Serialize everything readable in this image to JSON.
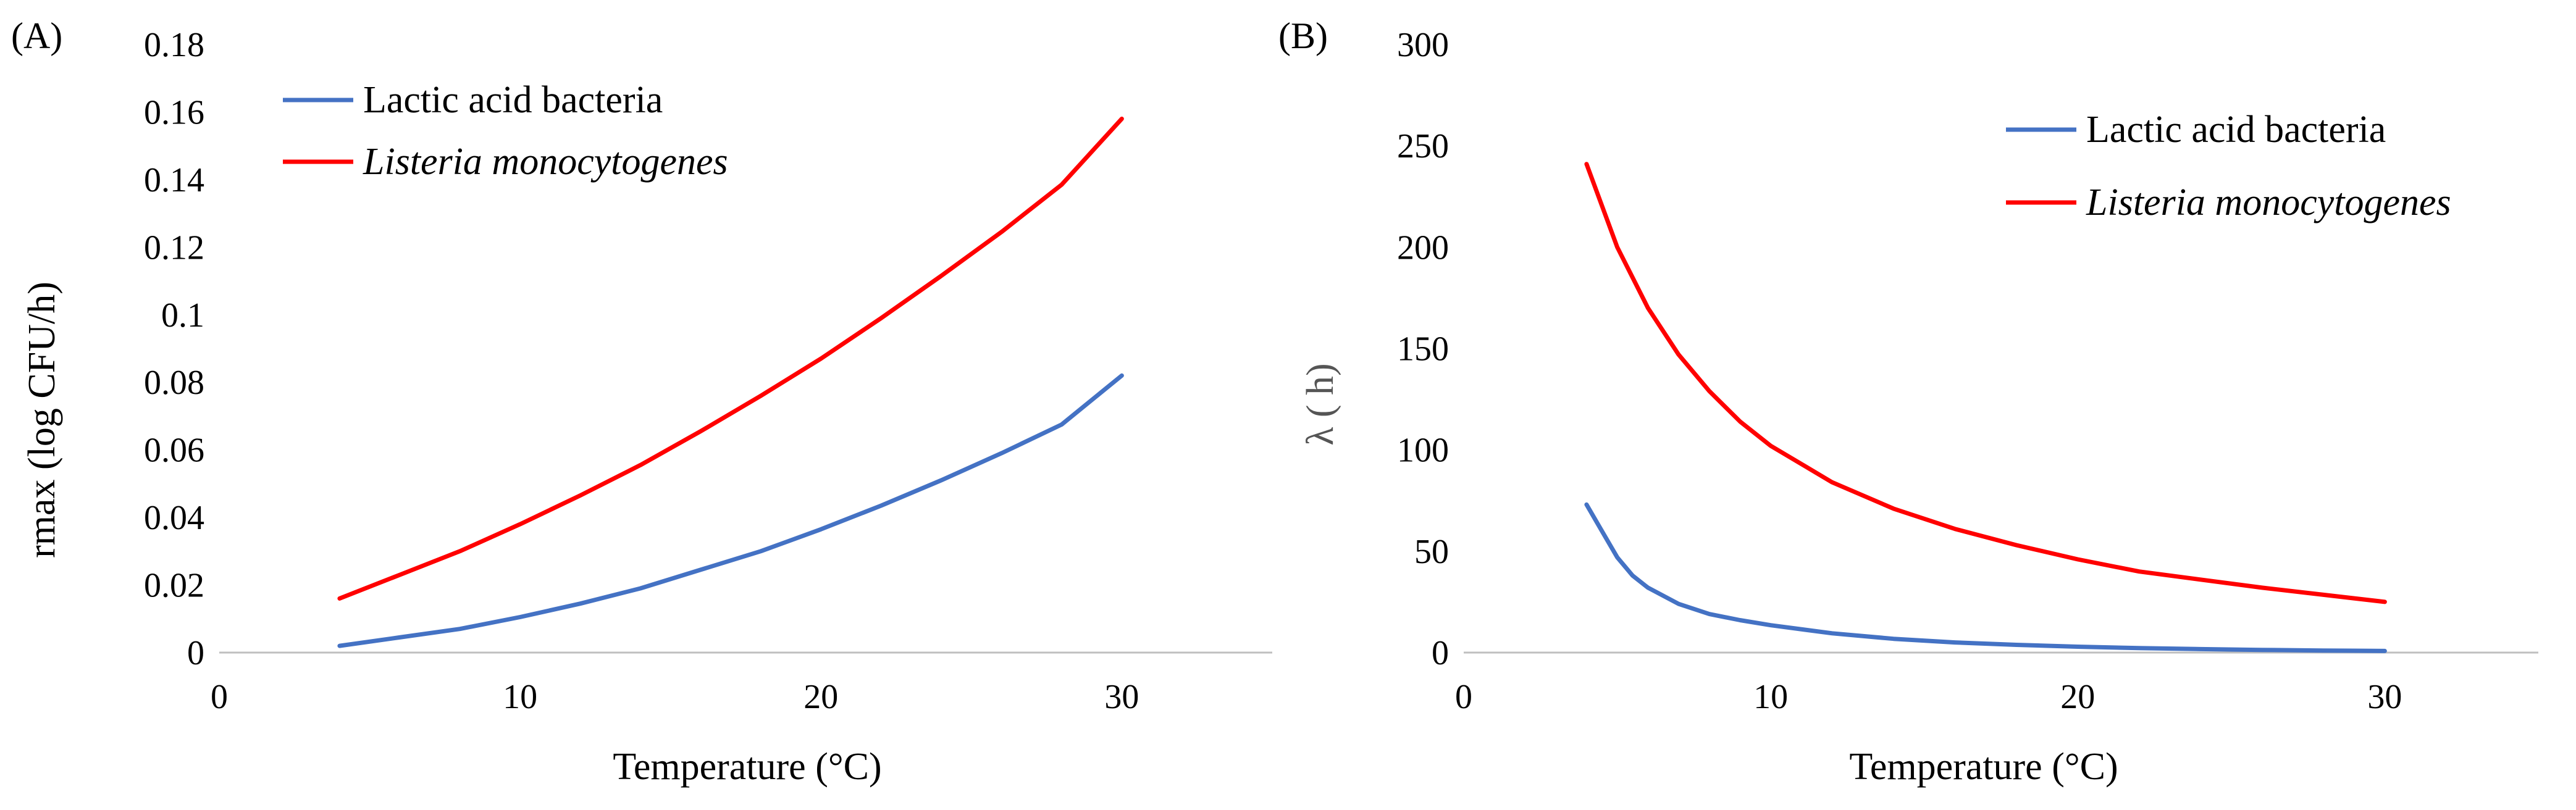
{
  "chart_data": [
    {
      "panel": "(A)",
      "type": "line",
      "xlabel": "Temperature (°C)",
      "ylabel": "rmax (log CFU/h)",
      "xlim": [
        0,
        35
      ],
      "ylim": [
        0,
        0.18
      ],
      "x_ticks": [
        "0",
        "10",
        "20",
        "30"
      ],
      "y_ticks": [
        "0",
        "0.02",
        "0.04",
        "0.06",
        "0.08",
        "0.1",
        "0.12",
        "0.14",
        "0.16",
        "0.18"
      ],
      "grid": false,
      "legend_position": "top-left",
      "series": [
        {
          "name": "Lactic acid bacteria",
          "color": "#4472C4",
          "legend_italic": false,
          "x": [
            4,
            6,
            8,
            10,
            12,
            14,
            16,
            18,
            20,
            22,
            24,
            26,
            28,
            30
          ],
          "y": [
            0.002,
            0.0045,
            0.007,
            0.0105,
            0.0145,
            0.019,
            0.0245,
            0.03,
            0.0365,
            0.0435,
            0.051,
            0.059,
            0.0675,
            0.082
          ]
        },
        {
          "name": "Listeria monocytogenes",
          "color": "#FF0000",
          "legend_italic": true,
          "x": [
            4,
            6,
            8,
            10,
            12,
            14,
            16,
            18,
            20,
            22,
            24,
            26,
            28,
            30
          ],
          "y": [
            0.016,
            0.023,
            0.03,
            0.038,
            0.0465,
            0.0555,
            0.0655,
            0.076,
            0.087,
            0.099,
            0.1115,
            0.1245,
            0.1385,
            0.158
          ]
        }
      ]
    },
    {
      "panel": "(B)",
      "type": "line",
      "xlabel": "Temperature (°C)",
      "ylabel": "λ ( h)",
      "xlim": [
        0,
        35
      ],
      "ylim": [
        0,
        300
      ],
      "x_ticks": [
        "0",
        "10",
        "20",
        "30"
      ],
      "y_ticks": [
        "0",
        "50",
        "100",
        "150",
        "200",
        "250",
        "300"
      ],
      "grid": false,
      "legend_position": "top-right",
      "series": [
        {
          "name": "Lactic acid bacteria",
          "color": "#4472C4",
          "legend_italic": false,
          "x": [
            4,
            4.5,
            5,
            5.5,
            6,
            7,
            8,
            9,
            10,
            12,
            14,
            16,
            18,
            20,
            22,
            24,
            26,
            28,
            30
          ],
          "y": [
            73,
            60,
            47,
            38,
            32,
            24,
            19,
            16,
            13.5,
            9.5,
            6.8,
            5.0,
            3.8,
            2.9,
            2.2,
            1.7,
            1.3,
            1.0,
            0.8
          ]
        },
        {
          "name": "Listeria monocytogenes",
          "color": "#FF0000",
          "legend_italic": true,
          "x": [
            4,
            5,
            6,
            7,
            8,
            9,
            10,
            12,
            14,
            16,
            18,
            20,
            22,
            24,
            26,
            28,
            30
          ],
          "y": [
            241,
            200,
            170,
            147,
            129,
            114,
            102,
            84,
            71,
            61,
            53,
            46,
            40,
            36,
            32,
            28.5,
            25
          ]
        }
      ]
    }
  ]
}
